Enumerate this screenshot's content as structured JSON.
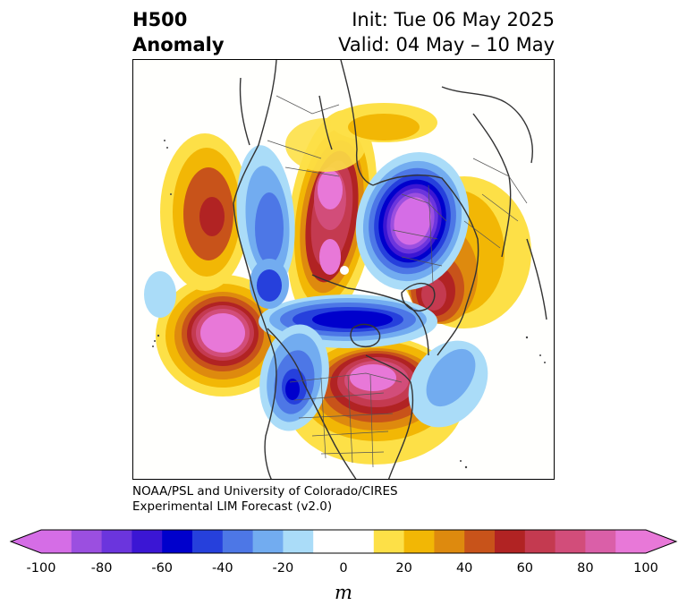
{
  "title": {
    "left_line1": "H500",
    "left_line2": "Anomaly",
    "right_line1": "Init: Tue 06 May 2025",
    "right_line2": "Valid: 04 May – 10 May"
  },
  "credit": {
    "line1": "NOAA/PSL and University of Colorado/CIRES",
    "line2": "Experimental LIM Forecast (v2.0)"
  },
  "colorbar": {
    "unit": "m",
    "ticks": [
      "-100",
      "-80",
      "-60",
      "-40",
      "-20",
      "0",
      "20",
      "40",
      "60",
      "80",
      "100"
    ],
    "colors": [
      "#d56de6",
      "#9b4fe0",
      "#6b35dd",
      "#3b16d4",
      "#0000cc",
      "#2640dc",
      "#4d77e6",
      "#72acf0",
      "#aadcf8",
      "#ffffff",
      "#ffffff",
      "#fde047",
      "#f2b705",
      "#de8a0e",
      "#c8531a",
      "#b12323",
      "#c43a50",
      "#d24d7a",
      "#da5fa8",
      "#e878d8"
    ],
    "extend_low_color": "#d56de6",
    "extend_high_color": "#e878d8"
  },
  "map": {
    "projection": "north polar stereographic",
    "field": "500 hPa geopotential height anomaly",
    "anomaly_centers": [
      {
        "region": "North Pacific",
        "sign": "positive",
        "value": 100
      },
      {
        "region": "Gulf of Alaska",
        "sign": "positive",
        "value": 60
      },
      {
        "region": "Eastern Siberia",
        "sign": "positive",
        "value": 100
      },
      {
        "region": "Canadian Archipelago",
        "sign": "positive",
        "value": 100
      },
      {
        "region": "Northern Europe",
        "sign": "negative",
        "value": -100
      },
      {
        "region": "Central Siberia",
        "sign": "negative",
        "value": -40
      },
      {
        "region": "Greenland / Arctic",
        "sign": "negative",
        "value": -60
      },
      {
        "region": "Western North Atlantic",
        "sign": "negative",
        "value": -30
      },
      {
        "region": "Western United States",
        "sign": "negative",
        "value": -60
      },
      {
        "region": "Eastern North America",
        "sign": "positive",
        "value": 80
      },
      {
        "region": "Western Europe",
        "sign": "positive",
        "value": 60
      }
    ]
  }
}
